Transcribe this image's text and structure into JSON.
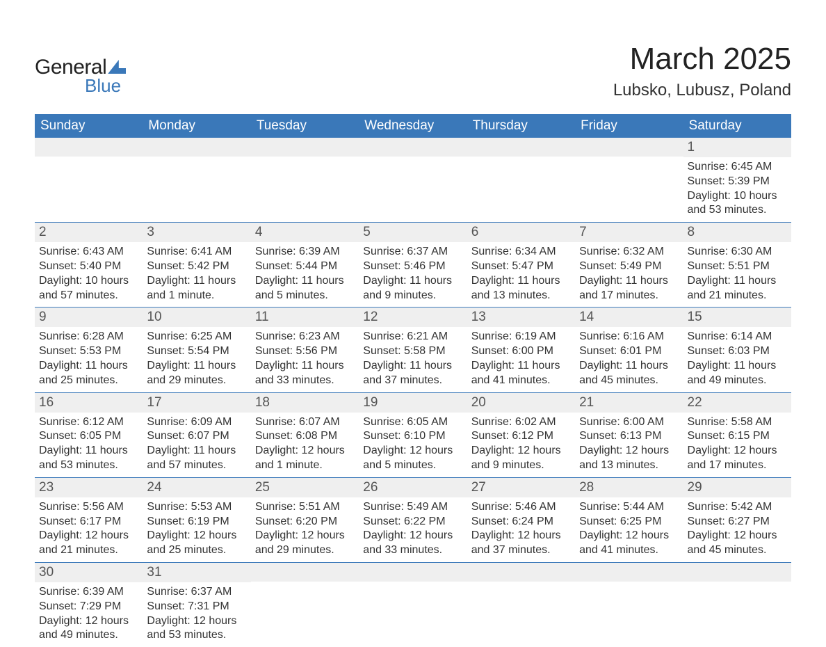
{
  "logo": {
    "text1": "General",
    "text2": "Blue"
  },
  "title": "March 2025",
  "location": "Lubsko, Lubusz, Poland",
  "colors": {
    "header_bg": "#3a78b9",
    "header_text": "#ffffff",
    "daynum_bg": "#efefef",
    "border": "#3a78b9",
    "text": "#333333",
    "title_text": "#222222"
  },
  "typography": {
    "title_fontsize": 44,
    "location_fontsize": 24,
    "weekday_fontsize": 19,
    "daynum_fontsize": 19,
    "body_fontsize": 16
  },
  "weekdays": [
    "Sunday",
    "Monday",
    "Tuesday",
    "Wednesday",
    "Thursday",
    "Friday",
    "Saturday"
  ],
  "weeks": [
    [
      {
        "n": "",
        "sunrise": "",
        "sunset": "",
        "daylight": ""
      },
      {
        "n": "",
        "sunrise": "",
        "sunset": "",
        "daylight": ""
      },
      {
        "n": "",
        "sunrise": "",
        "sunset": "",
        "daylight": ""
      },
      {
        "n": "",
        "sunrise": "",
        "sunset": "",
        "daylight": ""
      },
      {
        "n": "",
        "sunrise": "",
        "sunset": "",
        "daylight": ""
      },
      {
        "n": "",
        "sunrise": "",
        "sunset": "",
        "daylight": ""
      },
      {
        "n": "1",
        "sunrise": "Sunrise: 6:45 AM",
        "sunset": "Sunset: 5:39 PM",
        "daylight": "Daylight: 10 hours and 53 minutes."
      }
    ],
    [
      {
        "n": "2",
        "sunrise": "Sunrise: 6:43 AM",
        "sunset": "Sunset: 5:40 PM",
        "daylight": "Daylight: 10 hours and 57 minutes."
      },
      {
        "n": "3",
        "sunrise": "Sunrise: 6:41 AM",
        "sunset": "Sunset: 5:42 PM",
        "daylight": "Daylight: 11 hours and 1 minute."
      },
      {
        "n": "4",
        "sunrise": "Sunrise: 6:39 AM",
        "sunset": "Sunset: 5:44 PM",
        "daylight": "Daylight: 11 hours and 5 minutes."
      },
      {
        "n": "5",
        "sunrise": "Sunrise: 6:37 AM",
        "sunset": "Sunset: 5:46 PM",
        "daylight": "Daylight: 11 hours and 9 minutes."
      },
      {
        "n": "6",
        "sunrise": "Sunrise: 6:34 AM",
        "sunset": "Sunset: 5:47 PM",
        "daylight": "Daylight: 11 hours and 13 minutes."
      },
      {
        "n": "7",
        "sunrise": "Sunrise: 6:32 AM",
        "sunset": "Sunset: 5:49 PM",
        "daylight": "Daylight: 11 hours and 17 minutes."
      },
      {
        "n": "8",
        "sunrise": "Sunrise: 6:30 AM",
        "sunset": "Sunset: 5:51 PM",
        "daylight": "Daylight: 11 hours and 21 minutes."
      }
    ],
    [
      {
        "n": "9",
        "sunrise": "Sunrise: 6:28 AM",
        "sunset": "Sunset: 5:53 PM",
        "daylight": "Daylight: 11 hours and 25 minutes."
      },
      {
        "n": "10",
        "sunrise": "Sunrise: 6:25 AM",
        "sunset": "Sunset: 5:54 PM",
        "daylight": "Daylight: 11 hours and 29 minutes."
      },
      {
        "n": "11",
        "sunrise": "Sunrise: 6:23 AM",
        "sunset": "Sunset: 5:56 PM",
        "daylight": "Daylight: 11 hours and 33 minutes."
      },
      {
        "n": "12",
        "sunrise": "Sunrise: 6:21 AM",
        "sunset": "Sunset: 5:58 PM",
        "daylight": "Daylight: 11 hours and 37 minutes."
      },
      {
        "n": "13",
        "sunrise": "Sunrise: 6:19 AM",
        "sunset": "Sunset: 6:00 PM",
        "daylight": "Daylight: 11 hours and 41 minutes."
      },
      {
        "n": "14",
        "sunrise": "Sunrise: 6:16 AM",
        "sunset": "Sunset: 6:01 PM",
        "daylight": "Daylight: 11 hours and 45 minutes."
      },
      {
        "n": "15",
        "sunrise": "Sunrise: 6:14 AM",
        "sunset": "Sunset: 6:03 PM",
        "daylight": "Daylight: 11 hours and 49 minutes."
      }
    ],
    [
      {
        "n": "16",
        "sunrise": "Sunrise: 6:12 AM",
        "sunset": "Sunset: 6:05 PM",
        "daylight": "Daylight: 11 hours and 53 minutes."
      },
      {
        "n": "17",
        "sunrise": "Sunrise: 6:09 AM",
        "sunset": "Sunset: 6:07 PM",
        "daylight": "Daylight: 11 hours and 57 minutes."
      },
      {
        "n": "18",
        "sunrise": "Sunrise: 6:07 AM",
        "sunset": "Sunset: 6:08 PM",
        "daylight": "Daylight: 12 hours and 1 minute."
      },
      {
        "n": "19",
        "sunrise": "Sunrise: 6:05 AM",
        "sunset": "Sunset: 6:10 PM",
        "daylight": "Daylight: 12 hours and 5 minutes."
      },
      {
        "n": "20",
        "sunrise": "Sunrise: 6:02 AM",
        "sunset": "Sunset: 6:12 PM",
        "daylight": "Daylight: 12 hours and 9 minutes."
      },
      {
        "n": "21",
        "sunrise": "Sunrise: 6:00 AM",
        "sunset": "Sunset: 6:13 PM",
        "daylight": "Daylight: 12 hours and 13 minutes."
      },
      {
        "n": "22",
        "sunrise": "Sunrise: 5:58 AM",
        "sunset": "Sunset: 6:15 PM",
        "daylight": "Daylight: 12 hours and 17 minutes."
      }
    ],
    [
      {
        "n": "23",
        "sunrise": "Sunrise: 5:56 AM",
        "sunset": "Sunset: 6:17 PM",
        "daylight": "Daylight: 12 hours and 21 minutes."
      },
      {
        "n": "24",
        "sunrise": "Sunrise: 5:53 AM",
        "sunset": "Sunset: 6:19 PM",
        "daylight": "Daylight: 12 hours and 25 minutes."
      },
      {
        "n": "25",
        "sunrise": "Sunrise: 5:51 AM",
        "sunset": "Sunset: 6:20 PM",
        "daylight": "Daylight: 12 hours and 29 minutes."
      },
      {
        "n": "26",
        "sunrise": "Sunrise: 5:49 AM",
        "sunset": "Sunset: 6:22 PM",
        "daylight": "Daylight: 12 hours and 33 minutes."
      },
      {
        "n": "27",
        "sunrise": "Sunrise: 5:46 AM",
        "sunset": "Sunset: 6:24 PM",
        "daylight": "Daylight: 12 hours and 37 minutes."
      },
      {
        "n": "28",
        "sunrise": "Sunrise: 5:44 AM",
        "sunset": "Sunset: 6:25 PM",
        "daylight": "Daylight: 12 hours and 41 minutes."
      },
      {
        "n": "29",
        "sunrise": "Sunrise: 5:42 AM",
        "sunset": "Sunset: 6:27 PM",
        "daylight": "Daylight: 12 hours and 45 minutes."
      }
    ],
    [
      {
        "n": "30",
        "sunrise": "Sunrise: 6:39 AM",
        "sunset": "Sunset: 7:29 PM",
        "daylight": "Daylight: 12 hours and 49 minutes."
      },
      {
        "n": "31",
        "sunrise": "Sunrise: 6:37 AM",
        "sunset": "Sunset: 7:31 PM",
        "daylight": "Daylight: 12 hours and 53 minutes."
      },
      {
        "n": "",
        "sunrise": "",
        "sunset": "",
        "daylight": ""
      },
      {
        "n": "",
        "sunrise": "",
        "sunset": "",
        "daylight": ""
      },
      {
        "n": "",
        "sunrise": "",
        "sunset": "",
        "daylight": ""
      },
      {
        "n": "",
        "sunrise": "",
        "sunset": "",
        "daylight": ""
      },
      {
        "n": "",
        "sunrise": "",
        "sunset": "",
        "daylight": ""
      }
    ]
  ]
}
